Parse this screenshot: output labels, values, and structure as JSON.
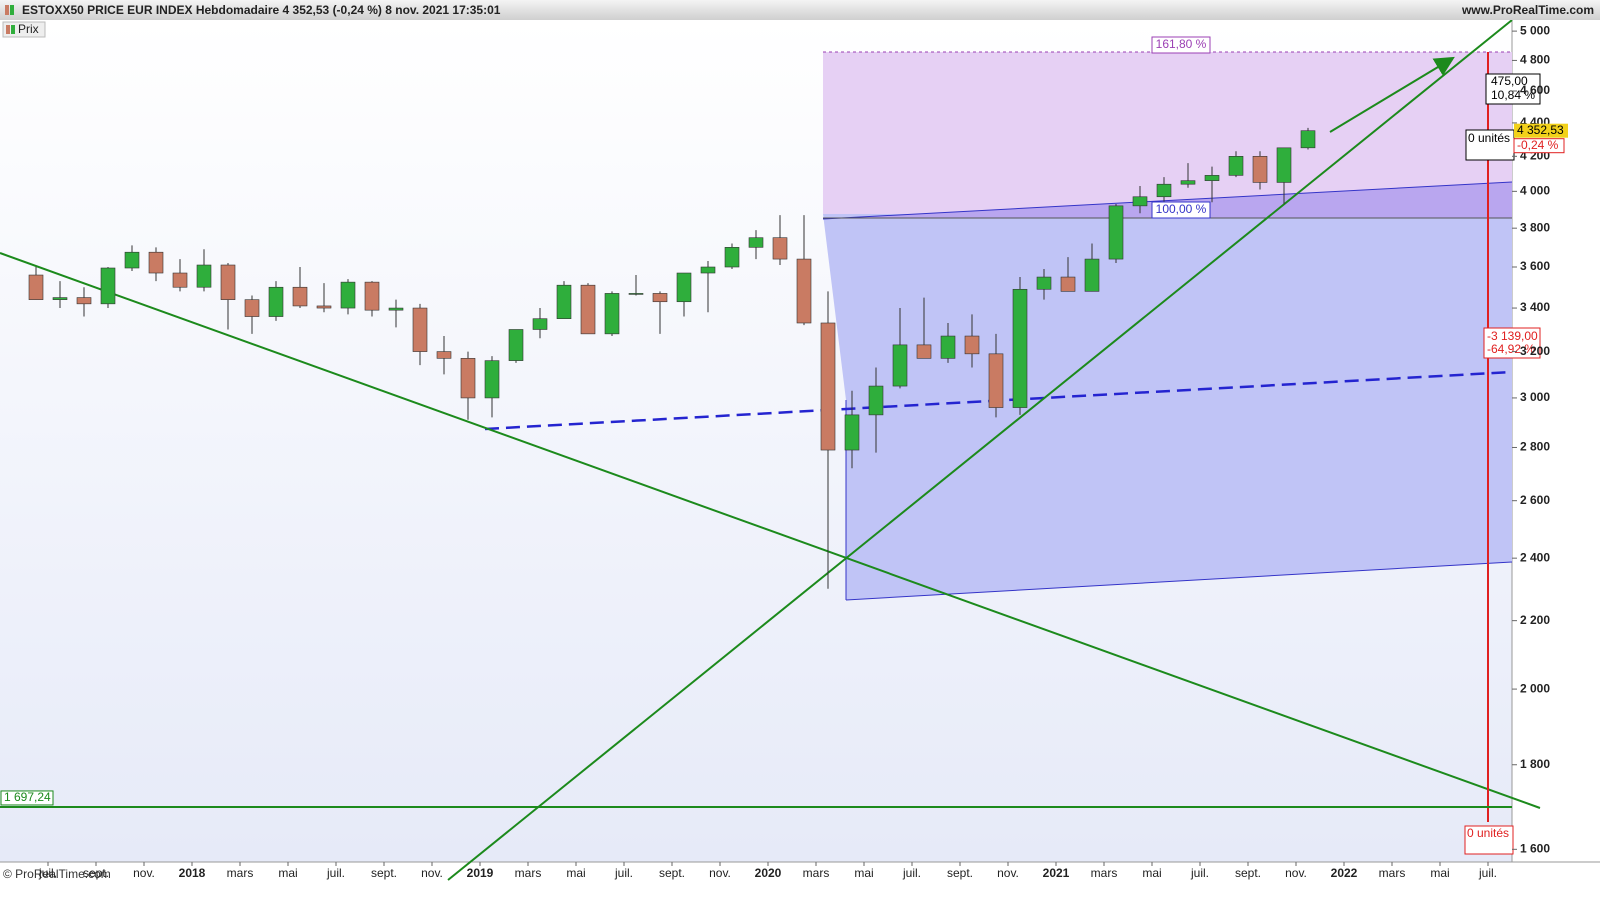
{
  "chart_data": {
    "type": "candlestick",
    "title": "ESTOXX50 PRICE EUR INDEX Hebdomadaire 4 352,53 (-0,24 %) 8 nov. 2021 17:35:01",
    "source": "www.ProRealTime.com",
    "copyright": "© ProRealTime.com",
    "legend": "Prix",
    "log_scale": true,
    "up_color": "#2fae3c",
    "down_color": "#c97b63",
    "x": [
      "2017-06",
      "2017-07",
      "2017-08",
      "2017-09",
      "2017-10",
      "2017-11",
      "2017-12",
      "2018-01",
      "2018-02",
      "2018-03",
      "2018-04",
      "2018-05",
      "2018-06",
      "2018-07",
      "2018-08",
      "2018-09",
      "2018-10",
      "2018-11",
      "2018-12",
      "2019-01",
      "2019-02",
      "2019-03",
      "2019-04",
      "2019-05",
      "2019-06",
      "2019-07",
      "2019-08",
      "2019-09",
      "2019-10",
      "2019-11",
      "2019-12",
      "2020-01",
      "2020-02",
      "2020-03",
      "2020-04",
      "2020-05",
      "2020-06",
      "2020-07",
      "2020-08",
      "2020-09",
      "2020-10",
      "2020-11",
      "2020-12",
      "2021-01",
      "2021-02",
      "2021-03",
      "2021-04",
      "2021-05",
      "2021-06",
      "2021-07",
      "2021-08",
      "2021-09",
      "2021-10",
      "2021-11"
    ],
    "open": [
      3560,
      3440,
      3450,
      3420,
      3595,
      3675,
      3570,
      3500,
      3610,
      3440,
      3360,
      3500,
      3410,
      3400,
      3525,
      3390,
      3400,
      3200,
      3170,
      3000,
      3160,
      3300,
      3350,
      3510,
      3280,
      3470,
      3470,
      3430,
      3570,
      3600,
      3700,
      3750,
      3640,
      3330,
      2790,
      2930,
      3050,
      3230,
      3170,
      3270,
      3190,
      2960,
      3490,
      3550,
      3480,
      3640,
      3920,
      3970,
      4040,
      4060,
      4090,
      4200,
      4050,
      4250
    ],
    "high": [
      3600,
      3530,
      3500,
      3600,
      3710,
      3700,
      3640,
      3690,
      3620,
      3460,
      3530,
      3600,
      3520,
      3540,
      3530,
      3440,
      3420,
      3270,
      3200,
      3180,
      3300,
      3400,
      3530,
      3520,
      3480,
      3560,
      3480,
      3570,
      3630,
      3720,
      3790,
      3870,
      3870,
      3480,
      3030,
      3130,
      3400,
      3450,
      3330,
      3370,
      3280,
      3550,
      3590,
      3650,
      3720,
      3930,
      4030,
      4080,
      4160,
      4140,
      4230,
      4230,
      4250,
      4370
    ],
    "low": [
      3440,
      3400,
      3360,
      3400,
      3580,
      3530,
      3480,
      3480,
      3300,
      3280,
      3340,
      3400,
      3380,
      3370,
      3360,
      3310,
      3140,
      3100,
      2910,
      2920,
      3150,
      3260,
      3350,
      3300,
      3270,
      3460,
      3280,
      3360,
      3380,
      3590,
      3640,
      3610,
      3320,
      2300,
      2720,
      2780,
      3040,
      3200,
      3150,
      3130,
      2920,
      2930,
      3440,
      3480,
      3480,
      3620,
      3880,
      3890,
      4020,
      3940,
      4080,
      4010,
      3930,
      4240
    ],
    "close": [
      3440,
      3450,
      3420,
      3595,
      3675,
      3570,
      3500,
      3610,
      3440,
      3360,
      3500,
      3410,
      3400,
      3525,
      3390,
      3400,
      3200,
      3170,
      3000,
      3160,
      3300,
      3350,
      3510,
      3280,
      3470,
      3470,
      3430,
      3570,
      3600,
      3700,
      3750,
      3640,
      3330,
      2790,
      2930,
      3050,
      3230,
      3170,
      3270,
      3190,
      2960,
      3490,
      3550,
      3480,
      3640,
      3920,
      3970,
      4040,
      4060,
      4090,
      4200,
      4050,
      4250,
      4352.53
    ],
    "xlim": [
      "2017-05",
      "2022-08"
    ],
    "xticks": [
      {
        "value": "2017-07",
        "label": "juil."
      },
      {
        "value": "2017-09",
        "label": "sept."
      },
      {
        "value": "2017-11",
        "label": "nov."
      },
      {
        "value": "2018-01",
        "label": "2018"
      },
      {
        "value": "2018-03",
        "label": "mars"
      },
      {
        "value": "2018-05",
        "label": "mai"
      },
      {
        "value": "2018-07",
        "label": "juil."
      },
      {
        "value": "2018-09",
        "label": "sept."
      },
      {
        "value": "2018-11",
        "label": "nov."
      },
      {
        "value": "2019-01",
        "label": "2019"
      },
      {
        "value": "2019-03",
        "label": "mars"
      },
      {
        "value": "2019-05",
        "label": "mai"
      },
      {
        "value": "2019-07",
        "label": "juil."
      },
      {
        "value": "2019-09",
        "label": "sept."
      },
      {
        "value": "2019-11",
        "label": "nov."
      },
      {
        "value": "2020-01",
        "label": "2020"
      },
      {
        "value": "2020-03",
        "label": "mars"
      },
      {
        "value": "2020-05",
        "label": "mai"
      },
      {
        "value": "2020-07",
        "label": "juil."
      },
      {
        "value": "2020-09",
        "label": "sept."
      },
      {
        "value": "2020-11",
        "label": "nov."
      },
      {
        "value": "2021-01",
        "label": "2021"
      },
      {
        "value": "2021-03",
        "label": "mars"
      },
      {
        "value": "2021-05",
        "label": "mai"
      },
      {
        "value": "2021-07",
        "label": "juil."
      },
      {
        "value": "2021-09",
        "label": "sept."
      },
      {
        "value": "2021-11",
        "label": "nov."
      },
      {
        "value": "2022-01",
        "label": "2022"
      },
      {
        "value": "2022-03",
        "label": "mars"
      },
      {
        "value": "2022-05",
        "label": "mai"
      },
      {
        "value": "2022-07",
        "label": "juil."
      }
    ],
    "ylim": [
      1572,
      5078
    ],
    "yticks": [
      {
        "value": 1600,
        "label": "1 600"
      },
      {
        "value": 1800,
        "label": "1 800"
      },
      {
        "value": 2000,
        "label": "2 000"
      },
      {
        "value": 2200,
        "label": "2 200"
      },
      {
        "value": 2400,
        "label": "2 400"
      },
      {
        "value": 2600,
        "label": "2 600"
      },
      {
        "value": 2800,
        "label": "2 800"
      },
      {
        "value": 3000,
        "label": "3 000"
      },
      {
        "value": 3200,
        "label": "3 200"
      },
      {
        "value": 3400,
        "label": "3 400"
      },
      {
        "value": 3600,
        "label": "3 600"
      },
      {
        "value": 3800,
        "label": "3 800"
      },
      {
        "value": 4000,
        "label": "4 000"
      },
      {
        "value": 4200,
        "label": "4 200"
      },
      {
        "value": 4400,
        "label": "4 400"
      },
      {
        "value": 4600,
        "label": "4 600"
      },
      {
        "value": 4800,
        "label": "4 800"
      },
      {
        "value": 5000,
        "label": "5 000"
      }
    ],
    "last_price": {
      "value": 4352.53,
      "label": "4 352,53"
    },
    "last_change": "-0,24 %",
    "level": {
      "value": 1697.24,
      "label": "1 697,24"
    },
    "annotations": [
      "161,80 %",
      "100,00 %",
      "475,00",
      "10,84 %",
      "0 unités",
      "-3 139,00",
      "-64,92 %",
      "0 unités"
    ]
  }
}
